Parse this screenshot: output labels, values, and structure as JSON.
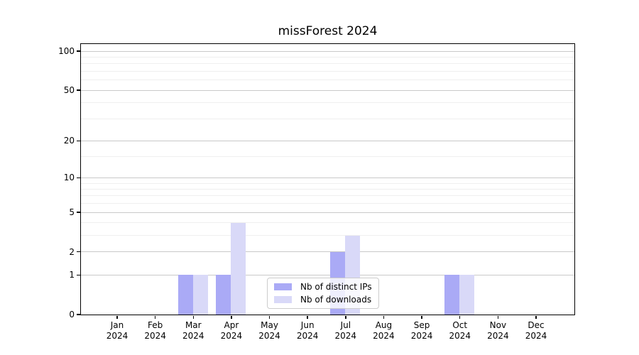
{
  "chart_data": {
    "type": "bar",
    "title": "missForest 2024",
    "categories": [
      "Jan 2024",
      "Feb 2024",
      "Mar 2024",
      "Apr 2024",
      "May 2024",
      "Jun 2024",
      "Jul 2024",
      "Aug 2024",
      "Sep 2024",
      "Oct 2024",
      "Nov 2024",
      "Dec 2024"
    ],
    "series": [
      {
        "name": "Nb of distinct IPs",
        "color": "#aaaaf6",
        "values": [
          0,
          0,
          1,
          1,
          0,
          0,
          2,
          0,
          0,
          1,
          0,
          0
        ]
      },
      {
        "name": "Nb of downloads",
        "color": "#d9d9f8",
        "values": [
          0,
          0,
          1,
          4,
          0,
          0,
          3,
          0,
          0,
          1,
          0,
          0
        ]
      }
    ],
    "xlabel": "",
    "ylabel": "",
    "yscale": "log1p",
    "ylim": [
      0,
      113
    ],
    "y_major_ticks": [
      0,
      1,
      2,
      5,
      10,
      20,
      50,
      100
    ],
    "y_minor_gridlines": [
      3,
      4,
      6,
      7,
      8,
      9,
      15,
      30,
      40,
      60,
      70,
      80,
      90
    ],
    "grid": "horizontal",
    "legend_position": "inside-lower-center",
    "axis_color": "#000000",
    "major_grid_color": "#c9c9c9",
    "minor_grid_color": "#efefef",
    "background_color": "#ffffff"
  }
}
